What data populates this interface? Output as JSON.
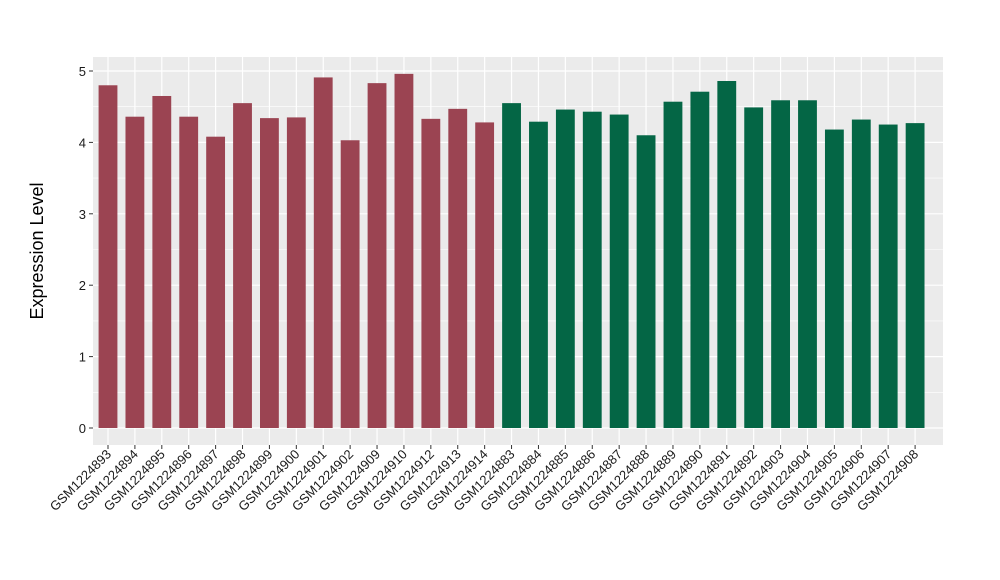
{
  "chart_data": {
    "type": "bar",
    "ylabel": "Expression Level",
    "xlabel": "",
    "ylim": [
      -0.2,
      5.1
    ],
    "yticks": [
      0,
      1,
      2,
      3,
      4,
      5
    ],
    "grid": true,
    "panel_background": "#ebebeb",
    "gridline_color": "#ffffff",
    "categories": [
      "GSM1224893",
      "GSM1224894",
      "GSM1224895",
      "GSM1224896",
      "GSM1224897",
      "GSM1224898",
      "GSM1224899",
      "GSM1224900",
      "GSM1224901",
      "GSM1224902",
      "GSM1224909",
      "GSM1224910",
      "GSM1224912",
      "GSM1224913",
      "GSM1224914",
      "GSM1224883",
      "GSM1224884",
      "GSM1224885",
      "GSM1224886",
      "GSM1224887",
      "GSM1224888",
      "GSM1224889",
      "GSM1224890",
      "GSM1224891",
      "GSM1224892",
      "GSM1224903",
      "GSM1224904",
      "GSM1224905",
      "GSM1224906",
      "GSM1224907",
      "GSM1224908"
    ],
    "values": [
      4.8,
      4.36,
      4.65,
      4.36,
      4.08,
      4.55,
      4.34,
      4.35,
      4.91,
      4.03,
      4.83,
      4.96,
      4.33,
      4.47,
      4.28,
      4.55,
      4.29,
      4.46,
      4.43,
      4.39,
      4.1,
      4.57,
      4.71,
      4.86,
      4.49,
      4.59,
      4.59,
      4.18,
      4.32,
      4.25,
      4.27
    ],
    "colors": [
      "#9b4452",
      "#9b4452",
      "#9b4452",
      "#9b4452",
      "#9b4452",
      "#9b4452",
      "#9b4452",
      "#9b4452",
      "#9b4452",
      "#9b4452",
      "#9b4452",
      "#9b4452",
      "#9b4452",
      "#9b4452",
      "#9b4452",
      "#046645",
      "#046645",
      "#046645",
      "#046645",
      "#046645",
      "#046645",
      "#046645",
      "#046645",
      "#046645",
      "#046645",
      "#046645",
      "#046645",
      "#046645",
      "#046645",
      "#046645",
      "#046645"
    ]
  }
}
